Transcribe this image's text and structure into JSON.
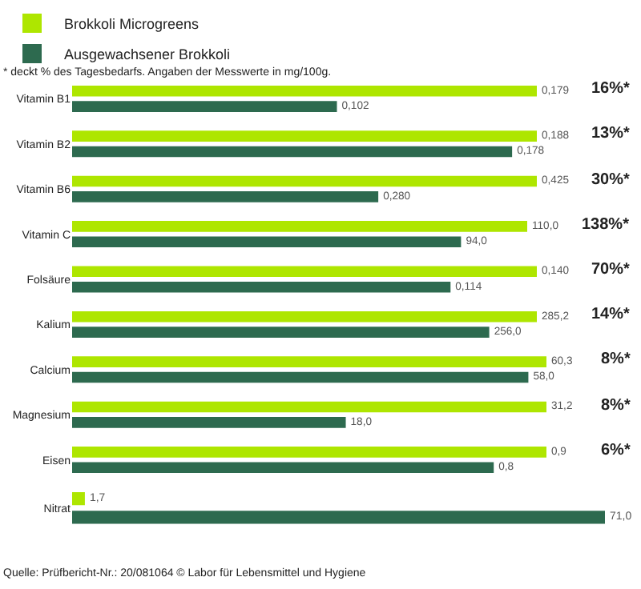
{
  "chart_data": [
    {
      "type": "bar",
      "orientation": "horizontal",
      "subtitle": "* deckt % des Tagesbedarfs. Angaben der Messwerte in mg/100g.",
      "legend": "top",
      "tick_labels": "y",
      "categories": [
        "Vitamin B1"
      ],
      "series": [
        {
          "name": "Brokkoli Microgreens",
          "color": "#aee600",
          "values": [
            0.179
          ],
          "value_labels": [
            "0,179"
          ]
        },
        {
          "name": "Ausgewachsener Brokkoli",
          "color": "#2d6a4f",
          "values": [
            0.102
          ],
          "value_labels": [
            "0,102"
          ]
        }
      ],
      "annotations": [
        "16%*"
      ]
    },
    {
      "type": "bar",
      "orientation": "horizontal",
      "tick_labels": "y",
      "categories": [
        "Vitamin B2"
      ],
      "series": [
        {
          "color": "#aee600",
          "values": [
            0.188
          ],
          "value_labels": [
            "0,188"
          ]
        },
        {
          "color": "#2d6a4f",
          "values": [
            0.178
          ],
          "value_labels": [
            "0,178"
          ]
        }
      ],
      "annotations": [
        "13%*"
      ]
    },
    {
      "type": "bar",
      "orientation": "horizontal",
      "tick_labels": "y",
      "categories": [
        "Vitamin B6"
      ],
      "series": [
        {
          "color": "#aee600",
          "values": [
            0.425
          ],
          "value_labels": [
            "0,425"
          ]
        },
        {
          "color": "#2d6a4f",
          "values": [
            0.28
          ],
          "value_labels": [
            "0,280"
          ]
        }
      ],
      "annotations": [
        "30%*"
      ]
    },
    {
      "type": "bar",
      "orientation": "horizontal",
      "tick_labels": "y",
      "categories": [
        "Vitamin C"
      ],
      "series": [
        {
          "color": "#aee600",
          "values": [
            110.0
          ],
          "value_labels": [
            "110,0"
          ]
        },
        {
          "color": "#2d6a4f",
          "values": [
            94.0
          ],
          "value_labels": [
            "94,0"
          ]
        }
      ],
      "annotations": [
        "138%*"
      ]
    },
    {
      "type": "bar",
      "orientation": "horizontal",
      "tick_labels": "y",
      "categories": [
        "Folsäure"
      ],
      "series": [
        {
          "color": "#aee600",
          "values": [
            0.14
          ],
          "value_labels": [
            "0,140"
          ]
        },
        {
          "color": "#2d6a4f",
          "values": [
            0.114
          ],
          "value_labels": [
            "0,114"
          ]
        }
      ],
      "annotations": [
        "70%*"
      ]
    },
    {
      "type": "bar",
      "orientation": "horizontal",
      "tick_labels": "y",
      "categories": [
        "Kalium"
      ],
      "series": [
        {
          "color": "#aee600",
          "values": [
            285.2
          ],
          "value_labels": [
            "285,2"
          ]
        },
        {
          "color": "#2d6a4f",
          "values": [
            256.0
          ],
          "value_labels": [
            "256,0"
          ]
        }
      ],
      "annotations": [
        "14%*"
      ]
    },
    {
      "type": "bar",
      "orientation": "horizontal",
      "tick_labels": "y",
      "categories": [
        "Calcium"
      ],
      "series": [
        {
          "color": "#aee600",
          "values": [
            60.3
          ],
          "value_labels": [
            "60,3"
          ]
        },
        {
          "color": "#2d6a4f",
          "values": [
            58.0
          ],
          "value_labels": [
            "58,0"
          ]
        }
      ],
      "annotations": [
        "8%*"
      ]
    },
    {
      "type": "bar",
      "orientation": "horizontal",
      "tick_labels": "y",
      "categories": [
        "Magnesium"
      ],
      "series": [
        {
          "color": "#aee600",
          "values": [
            31.2
          ],
          "value_labels": [
            "31,2"
          ]
        },
        {
          "color": "#2d6a4f",
          "values": [
            18.0
          ],
          "value_labels": [
            "18,0"
          ]
        }
      ],
      "annotations": [
        "8%*"
      ]
    },
    {
      "type": "bar",
      "orientation": "horizontal",
      "tick_labels": "y",
      "categories": [
        "Eisen"
      ],
      "series": [
        {
          "color": "#aee600",
          "values": [
            0.9
          ],
          "value_labels": [
            "0,9"
          ]
        },
        {
          "color": "#2d6a4f",
          "values": [
            0.8
          ],
          "value_labels": [
            "0,8"
          ]
        }
      ],
      "annotations": [
        "6%*"
      ]
    },
    {
      "type": "bar",
      "orientation": "horizontal",
      "tick_labels": "y",
      "categories": [
        "Nitrat"
      ],
      "series": [
        {
          "color": "#aee600",
          "values": [
            1.7
          ],
          "value_labels": [
            "1,7"
          ]
        },
        {
          "color": "#2d6a4f",
          "values": [
            71.0
          ],
          "value_labels": [
            "71,0"
          ]
        }
      ],
      "annotations": [
        "Quelle: Prüfbericht-Nr.: 20/081064 © Labor für Lebensmittel und Hygiene"
      ]
    }
  ]
}
